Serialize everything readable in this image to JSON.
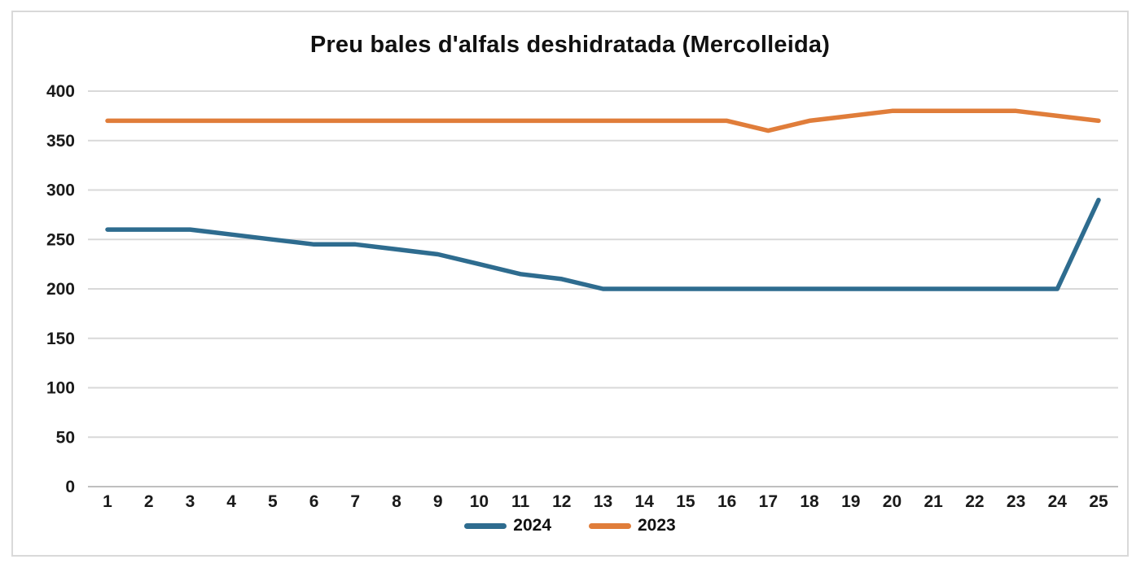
{
  "figure": {
    "background": "#ffffff",
    "border_color": "#d9d9d9",
    "gridline_color": "#d9d9d9",
    "zero_axis_color": "#bfbfbf",
    "text_color": "#111111"
  },
  "chart_data": {
    "type": "line",
    "title": "Preu bales d'alfals deshidratada (Mercolleida)",
    "xlabel": "",
    "ylabel": "",
    "categories": [
      "1",
      "2",
      "3",
      "4",
      "5",
      "6",
      "7",
      "8",
      "9",
      "10",
      "11",
      "12",
      "13",
      "14",
      "15",
      "16",
      "17",
      "18",
      "19",
      "20",
      "21",
      "22",
      "23",
      "24",
      "25"
    ],
    "series": [
      {
        "name": "2024",
        "color": "#2e6c8f",
        "values": [
          260,
          260,
          260,
          255,
          250,
          245,
          245,
          240,
          235,
          225,
          215,
          210,
          200,
          200,
          200,
          200,
          200,
          200,
          200,
          200,
          200,
          200,
          200,
          200,
          290
        ]
      },
      {
        "name": "2023",
        "color": "#e07d3a",
        "values": [
          370,
          370,
          370,
          370,
          370,
          370,
          370,
          370,
          370,
          370,
          370,
          370,
          370,
          370,
          370,
          370,
          360,
          370,
          375,
          380,
          380,
          380,
          380,
          375,
          370
        ]
      }
    ],
    "ylim": [
      0,
      400
    ],
    "y_ticks": [
      0,
      50,
      100,
      150,
      200,
      250,
      300,
      350,
      400
    ],
    "grid": "horizontal",
    "legend_position": "bottom"
  }
}
